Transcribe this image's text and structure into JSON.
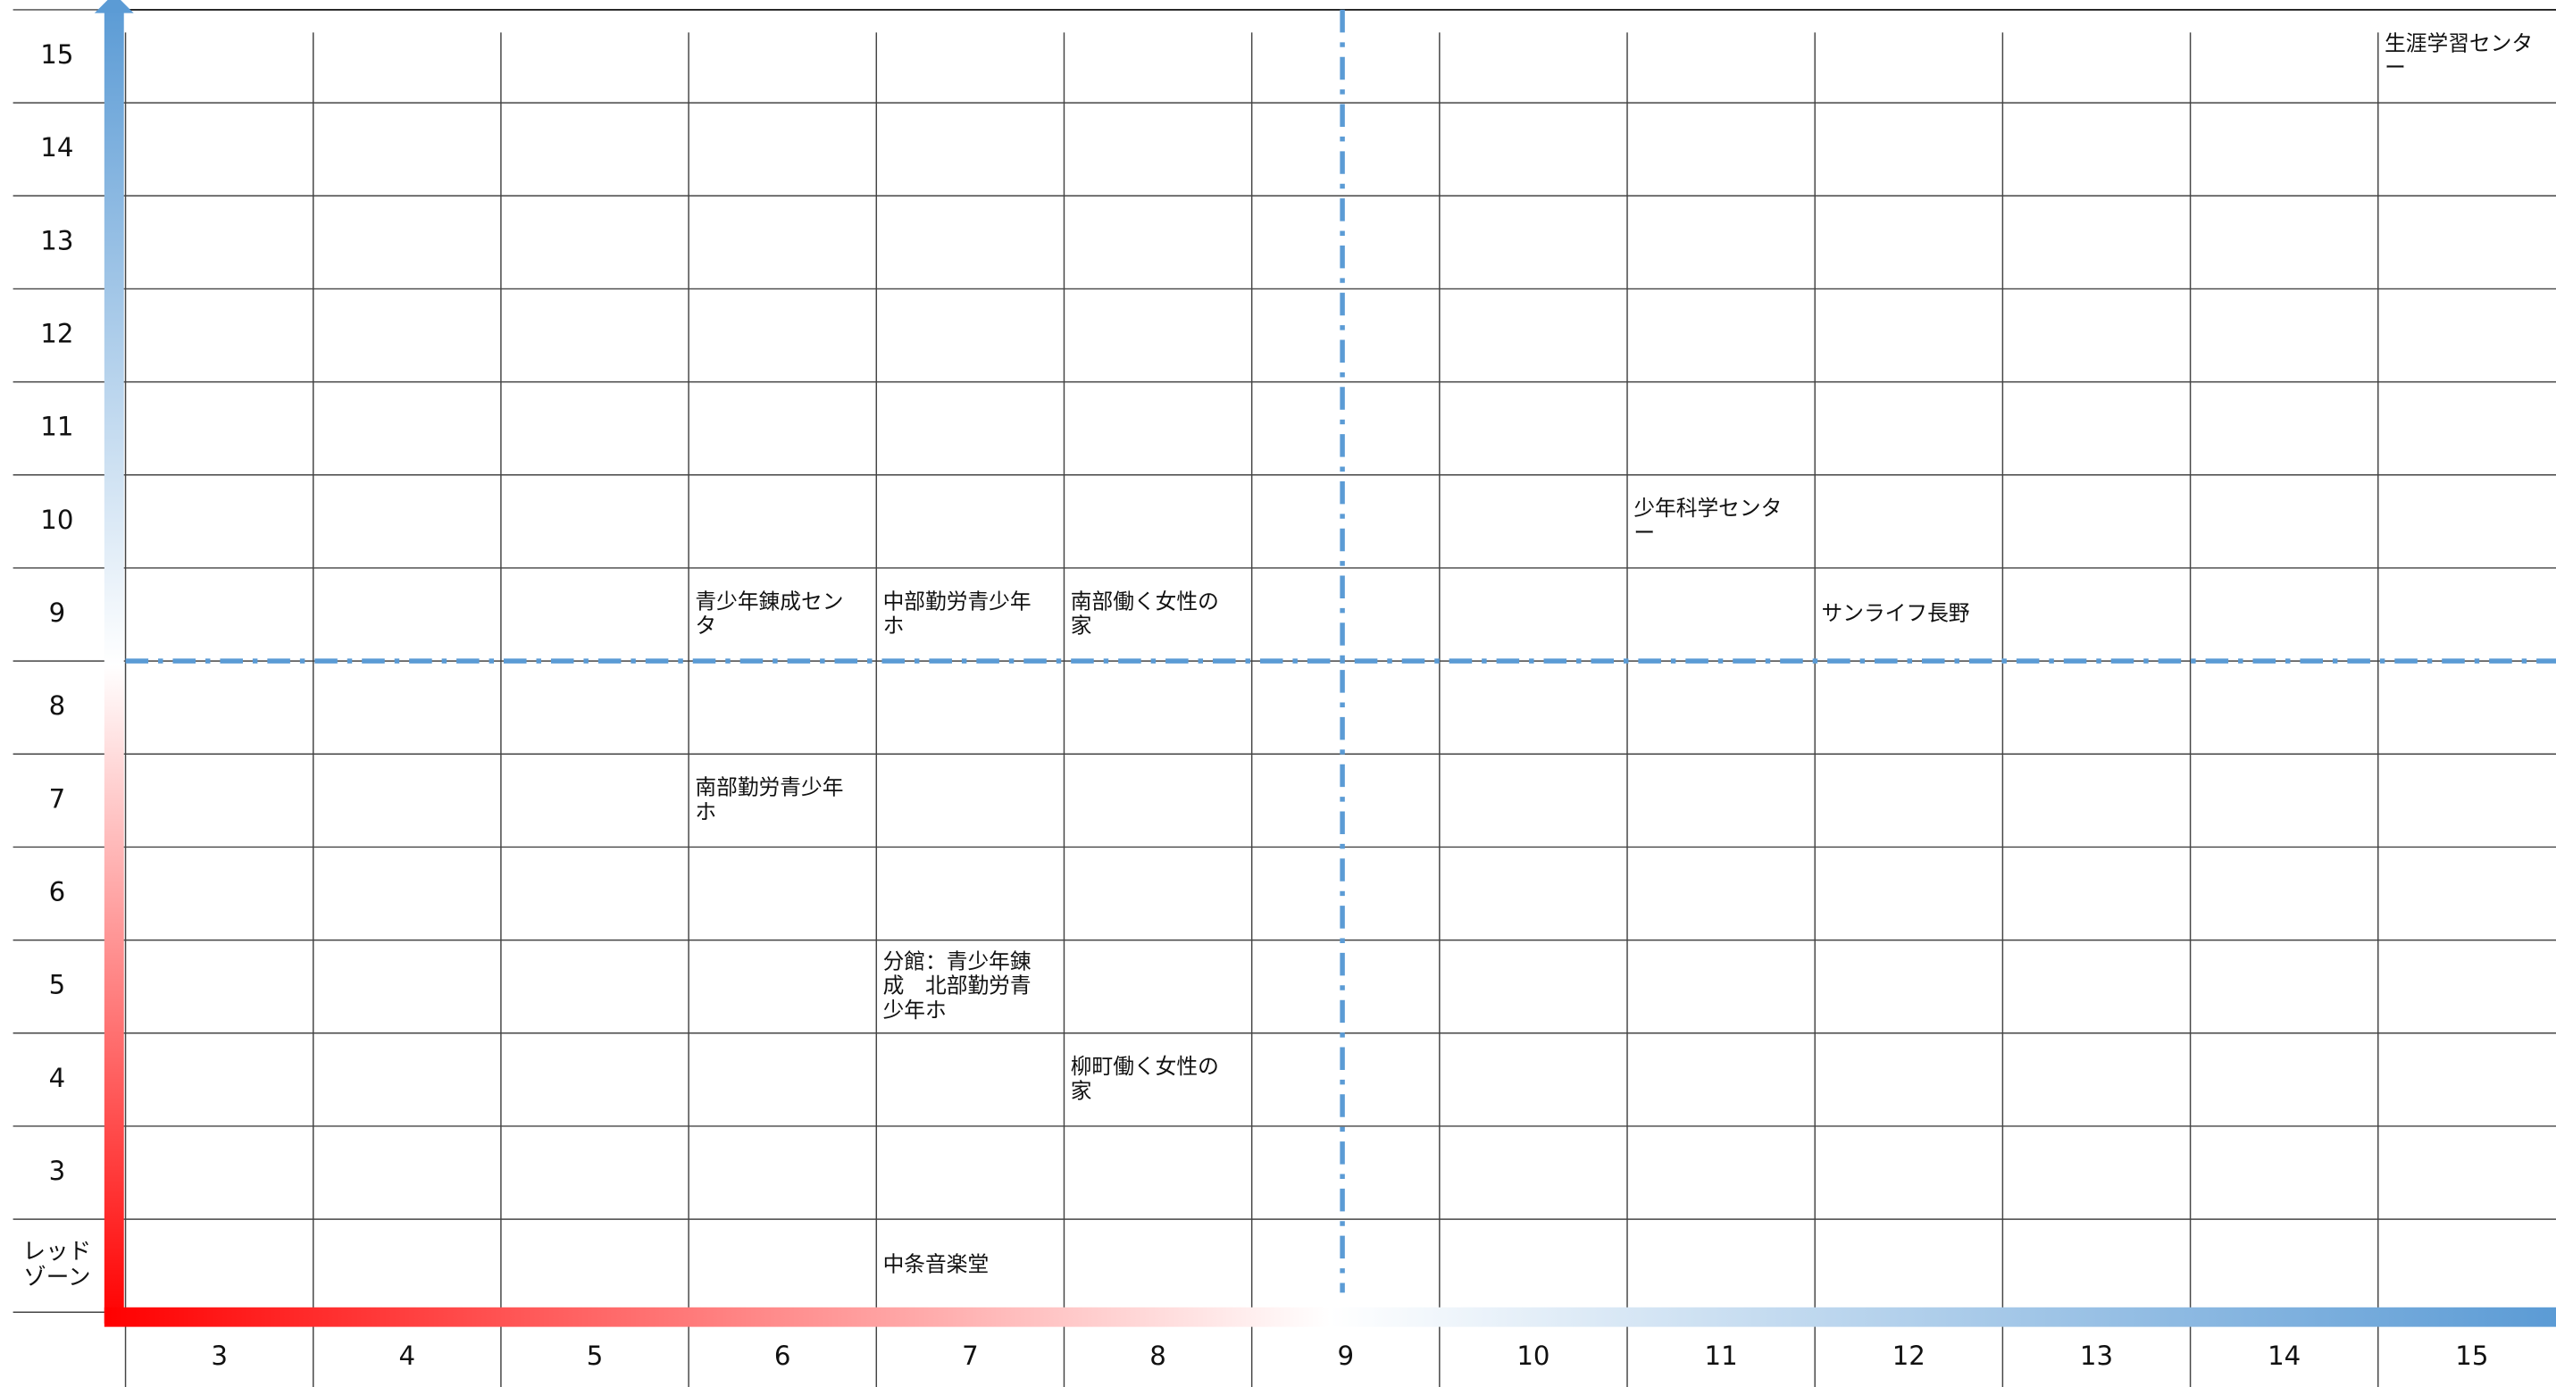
{
  "chart_data": {
    "type": "scatter",
    "xlim": [
      2.5,
      15.5
    ],
    "ylim": [
      1.5,
      15.5
    ],
    "xticks": [
      3,
      4,
      5,
      6,
      7,
      8,
      9,
      10,
      11,
      12,
      13,
      14,
      15
    ],
    "yticks": [
      15,
      14,
      13,
      12,
      11,
      10,
      9,
      8,
      7,
      6,
      5,
      4,
      3,
      {
        "value": 2,
        "label": "レッドゾーン"
      }
    ],
    "thresholds": {
      "x": 9,
      "y": 8.5,
      "color": "#5b9bd5"
    },
    "axis_colors": [
      "#ff0000",
      "#ffffff",
      "#5b9bd5"
    ],
    "points": [
      {
        "label": "生涯学習センター",
        "x": 15,
        "y": 15
      },
      {
        "label": "少年科学センター",
        "x": 11,
        "y": 10
      },
      {
        "label": "青少年錬成センタ",
        "x": 6,
        "y": 9
      },
      {
        "label": "中部勤労青少年ホ",
        "x": 7,
        "y": 9
      },
      {
        "label": "南部働く女性の家",
        "x": 8,
        "y": 9
      },
      {
        "label": "サンライフ長野",
        "x": 12,
        "y": 9
      },
      {
        "label": "南部勤労青少年ホ",
        "x": 6,
        "y": 7
      },
      {
        "label": "分館：青少年錬成　北部勤労青少年ホ",
        "x": 7,
        "y": 5
      },
      {
        "label": "柳町働く女性の家",
        "x": 8,
        "y": 4
      },
      {
        "label": "中条音楽堂",
        "x": 7,
        "y": 2
      }
    ]
  }
}
